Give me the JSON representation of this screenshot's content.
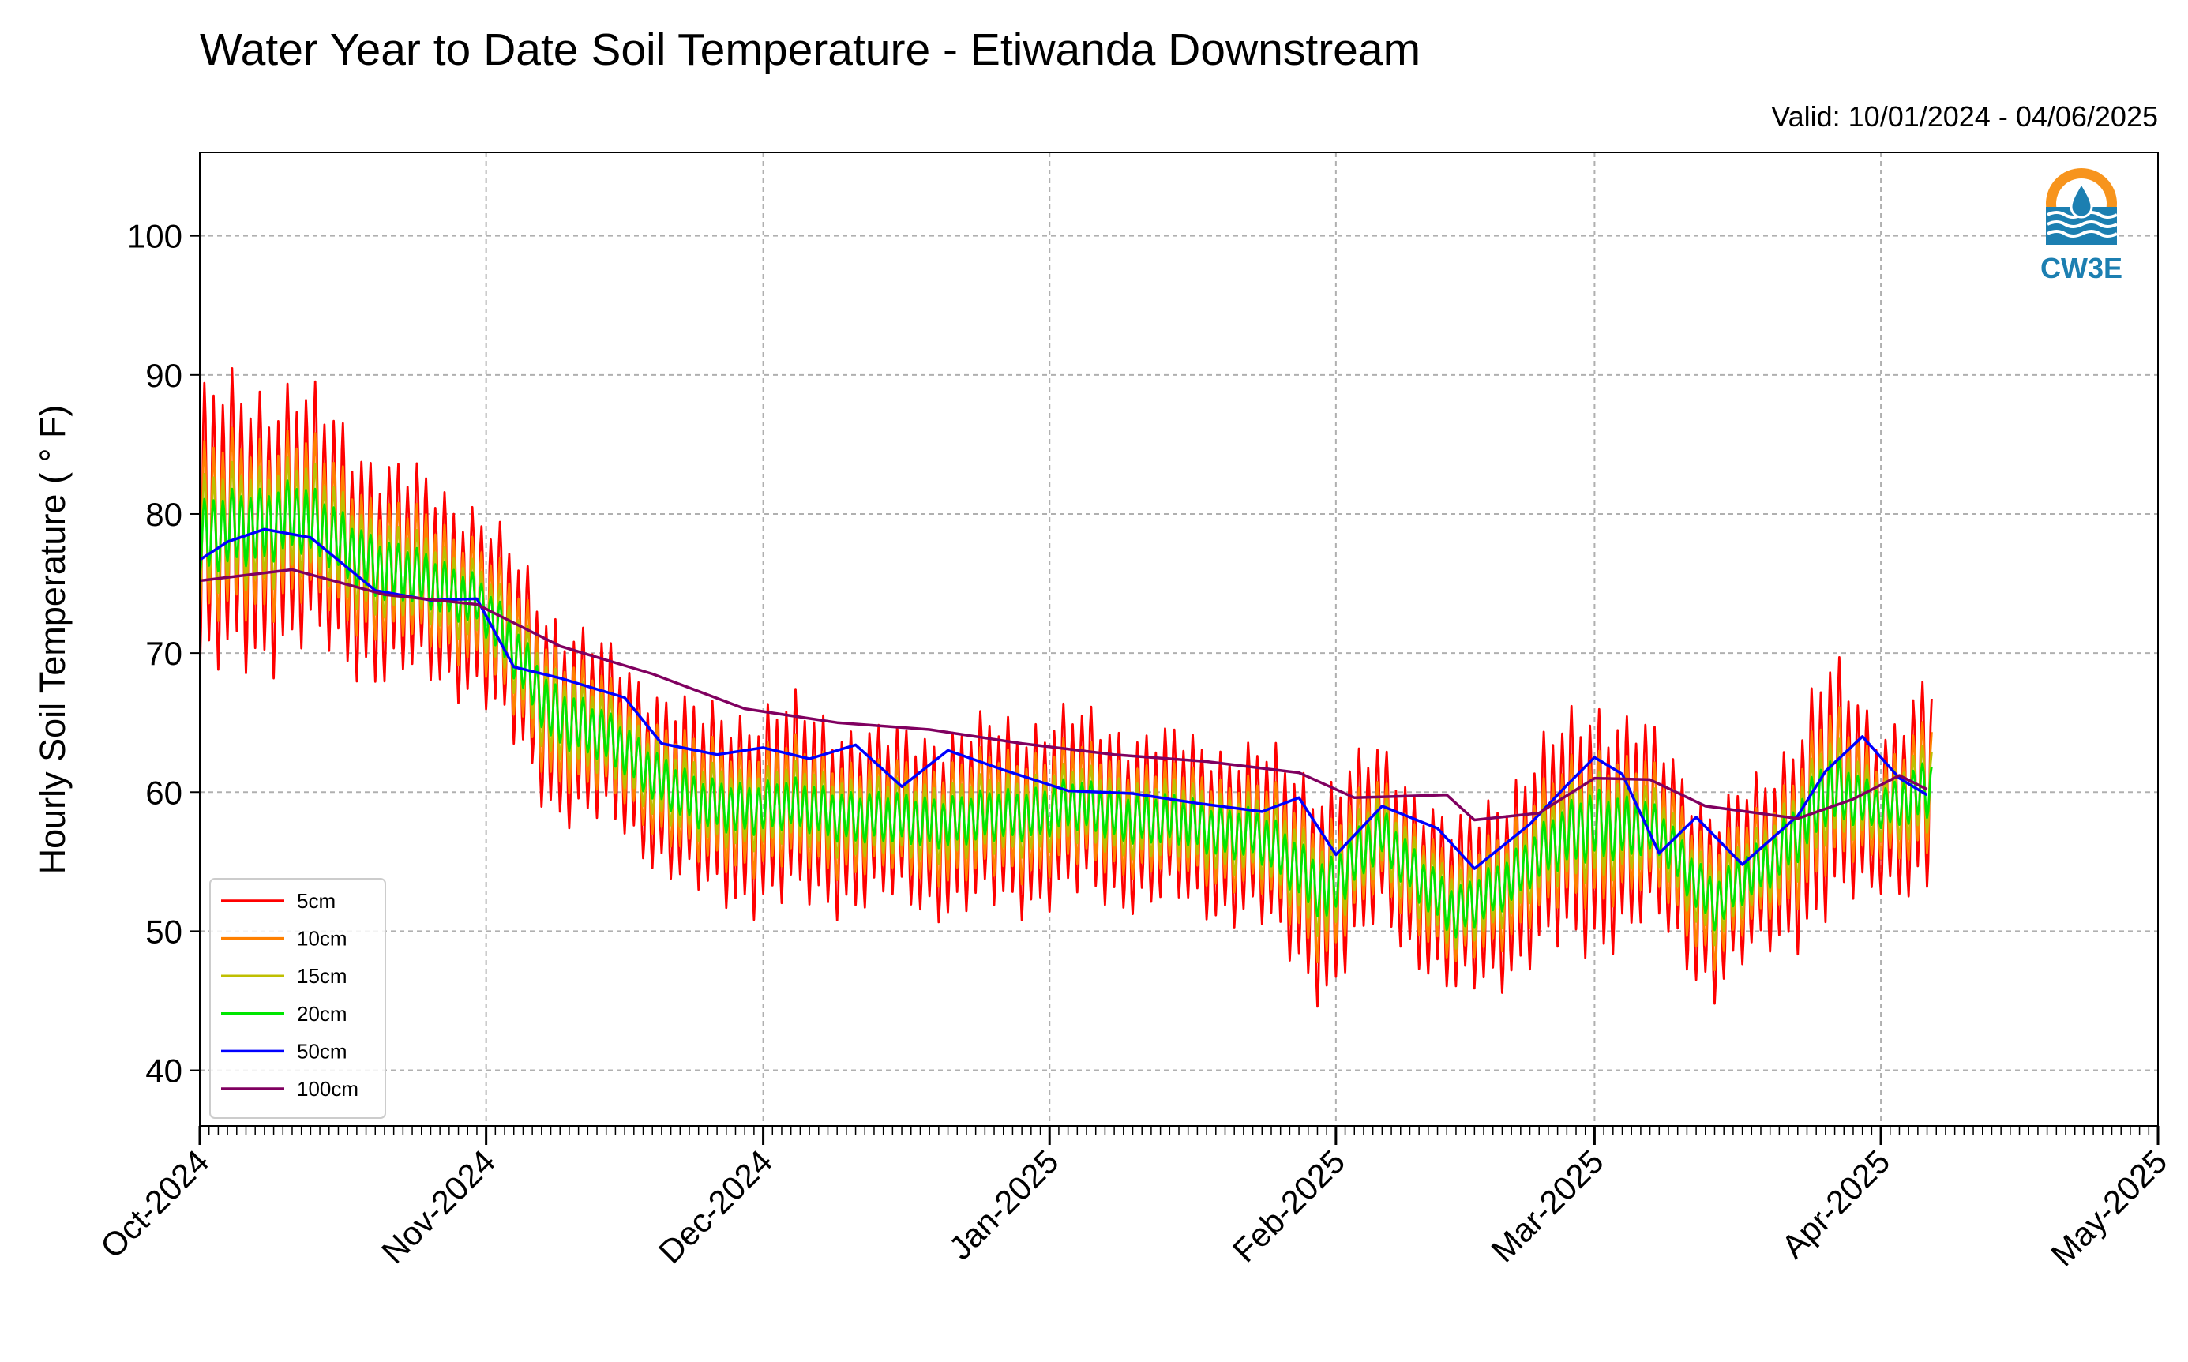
{
  "chart_data": {
    "type": "line",
    "title": "Water Year to Date Soil Temperature - Etiwanda Downstream",
    "subtitle": "Valid: 10/01/2024 - 04/06/2025",
    "ylabel": "Hourly Soil Temperature ( ° F)",
    "xlabel": "",
    "ylim": [
      36,
      106
    ],
    "yticks": [
      40,
      50,
      60,
      70,
      80,
      90,
      100
    ],
    "xlim": [
      "2024-10-01",
      "2025-05-01"
    ],
    "xticks": [
      {
        "date": "2024-10-01",
        "label": "Oct-2024"
      },
      {
        "date": "2024-11-01",
        "label": "Nov-2024"
      },
      {
        "date": "2024-12-01",
        "label": "Dec-2024"
      },
      {
        "date": "2025-01-01",
        "label": "Jan-2025"
      },
      {
        "date": "2025-02-01",
        "label": "Feb-2025"
      },
      {
        "date": "2025-03-01",
        "label": "Mar-2025"
      },
      {
        "date": "2025-04-01",
        "label": "Apr-2025"
      },
      {
        "date": "2025-05-01",
        "label": "May-2025"
      }
    ],
    "grid": true,
    "legend_position": "lower-left",
    "mean_temperature_by_date": {
      "date": [
        "2024-10-01",
        "2024-10-11",
        "2024-10-21",
        "2024-10-31",
        "2024-11-08",
        "2024-11-16",
        "2024-11-24",
        "2024-12-04",
        "2024-12-14",
        "2024-12-24",
        "2025-01-03",
        "2025-01-13",
        "2025-01-23",
        "2025-01-31",
        "2025-02-06",
        "2025-02-14",
        "2025-02-22",
        "2025-03-01",
        "2025-03-08",
        "2025-03-14",
        "2025-03-20",
        "2025-03-26",
        "2025-04-01",
        "2025-04-06"
      ],
      "value": [
        78,
        80,
        76,
        74,
        66,
        63,
        59,
        59,
        58,
        58,
        59,
        58,
        57,
        53,
        57,
        51,
        55,
        58,
        57,
        52,
        55,
        60,
        59,
        60
      ]
    },
    "series": [
      {
        "name": "5cm",
        "color": "#ff0000",
        "daily_amplitude_f": [
          19,
          17,
          14,
          12,
          13,
          11,
          12,
          13,
          11,
          12,
          12,
          11,
          11,
          14,
          11,
          11,
          13,
          16,
          12,
          12,
          11,
          17,
          10,
          14
        ]
      },
      {
        "name": "10cm",
        "color": "#ff8000",
        "daily_amplitude_f": [
          12,
          11,
          9,
          8,
          9,
          7,
          8,
          8,
          7,
          8,
          8,
          7,
          7,
          9,
          7,
          7,
          8,
          10,
          8,
          8,
          7,
          11,
          6,
          9
        ]
      },
      {
        "name": "15cm",
        "color": "#bfbf00",
        "daily_amplitude_f": [
          8,
          7.5,
          6,
          5,
          6,
          5,
          5,
          5,
          5,
          5,
          5,
          5,
          5,
          6,
          5,
          5,
          5,
          7,
          5,
          5,
          5,
          7,
          4,
          6
        ]
      },
      {
        "name": "20cm",
        "color": "#00e600",
        "daily_amplitude_f": [
          5,
          4.5,
          3.8,
          3.2,
          3.8,
          3.2,
          3.2,
          3.2,
          3.2,
          3.2,
          3.2,
          3.2,
          3.2,
          3.8,
          3.2,
          3.2,
          3.2,
          4.5,
          3.2,
          3.2,
          3.2,
          4.5,
          2.5,
          3.8
        ]
      },
      {
        "name": "50cm",
        "color": "#0000ff",
        "date": [
          "2024-10-01",
          "2024-10-04",
          "2024-10-08",
          "2024-10-13",
          "2024-10-20",
          "2024-10-26",
          "2024-10-31",
          "2024-11-04",
          "2024-11-09",
          "2024-11-16",
          "2024-11-20",
          "2024-11-26",
          "2024-12-01",
          "2024-12-06",
          "2024-12-11",
          "2024-12-16",
          "2024-12-21",
          "2024-12-27",
          "2025-01-03",
          "2025-01-10",
          "2025-01-17",
          "2025-01-24",
          "2025-01-28",
          "2025-02-01",
          "2025-02-06",
          "2025-02-12",
          "2025-02-16",
          "2025-02-22",
          "2025-02-26",
          "2025-03-01",
          "2025-03-04",
          "2025-03-08",
          "2025-03-12",
          "2025-03-17",
          "2025-03-23",
          "2025-03-26",
          "2025-03-30",
          "2025-04-03",
          "2025-04-06"
        ],
        "value": [
          76.7,
          78,
          78.9,
          78.3,
          74.5,
          73.8,
          73.9,
          69,
          68.2,
          66.8,
          63.5,
          62.7,
          63.2,
          62.4,
          63.4,
          60.4,
          63,
          61.6,
          60.1,
          59.9,
          59.2,
          58.6,
          59.6,
          55.5,
          59,
          57.4,
          54.5,
          57.7,
          60.5,
          62.5,
          61.3,
          55.6,
          58.2,
          54.8,
          58.3,
          61.5,
          64,
          61,
          59.8
        ]
      },
      {
        "name": "100cm",
        "color": "#800060",
        "date": [
          "2024-10-01",
          "2024-10-11",
          "2024-10-21",
          "2024-10-31",
          "2024-11-09",
          "2024-11-19",
          "2024-11-29",
          "2024-12-09",
          "2024-12-19",
          "2024-12-29",
          "2025-01-08",
          "2025-01-18",
          "2025-01-28",
          "2025-02-03",
          "2025-02-13",
          "2025-02-16",
          "2025-02-23",
          "2025-03-01",
          "2025-03-07",
          "2025-03-13",
          "2025-03-23",
          "2025-03-29",
          "2025-04-03",
          "2025-04-06"
        ],
        "value": [
          75.2,
          76,
          74.2,
          73.5,
          70.5,
          68.5,
          66,
          65,
          64.5,
          63.5,
          62.7,
          62.2,
          61.4,
          59.6,
          59.8,
          58,
          58.5,
          61,
          60.9,
          59,
          58.1,
          59.5,
          61.2,
          60.2
        ]
      }
    ]
  },
  "logo": {
    "text": "CW3E",
    "orange": "#f7941d",
    "blue": "#1c7fb1"
  }
}
